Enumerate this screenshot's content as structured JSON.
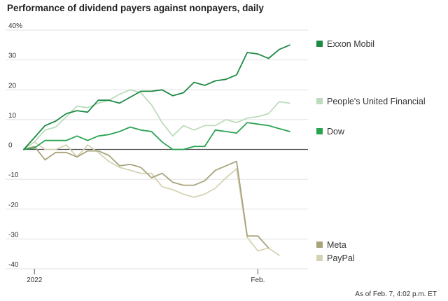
{
  "title": "Performance of dividend payers against nonpayers, daily",
  "footnote": "As of Feb. 7, 4:02 p.m. ET",
  "chart_data": {
    "type": "line",
    "y_unit_label": "%",
    "ylim": [
      -40,
      40
    ],
    "y_ticks": [
      40,
      30,
      20,
      10,
      0,
      -10,
      -20,
      -30,
      -40
    ],
    "x_tick_labels": [
      {
        "label": "2022",
        "index": 1
      },
      {
        "label": "Feb.",
        "index": 22
      }
    ],
    "grid": true,
    "legend_position": "right, at line ends",
    "series": [
      {
        "name": "Exxon Mobil",
        "color": "#1e8a45",
        "values": [
          0,
          4,
          8,
          9.5,
          12,
          13,
          12.5,
          16.5,
          16.5,
          15.5,
          17.5,
          19.5,
          19.5,
          20,
          18,
          19,
          22.5,
          21.5,
          23,
          23.5,
          25,
          32.5,
          32,
          30.5,
          33.5,
          35
        ]
      },
      {
        "name": "People's United Financial",
        "color": "#bcdcbc",
        "values": [
          0,
          2.5,
          6.5,
          7.5,
          11,
          14.5,
          14,
          15.5,
          16.5,
          18.5,
          20,
          19,
          15,
          9,
          4.5,
          8,
          6.5,
          8,
          8,
          10,
          9,
          10.5,
          11,
          12,
          16,
          15.5
        ]
      },
      {
        "name": "Dow",
        "color": "#2aa452",
        "values": [
          0,
          0.5,
          3,
          3,
          3,
          4.5,
          3,
          4.5,
          5,
          6,
          7.5,
          6.5,
          6,
          2.5,
          0,
          0,
          1,
          1,
          6.5,
          6,
          5.5,
          9,
          8.5,
          8,
          7,
          6
        ]
      },
      {
        "name": "Meta",
        "color": "#a9a37c",
        "values": [
          0,
          1,
          -3.5,
          -1,
          -1,
          -2.5,
          -0.5,
          -0.5,
          -2,
          -5.5,
          -5,
          -6,
          -9.5,
          -8,
          -11,
          -12,
          -12,
          -10.5,
          -7,
          -5.5,
          -4,
          -29,
          -29,
          -33
        ]
      },
      {
        "name": "PayPal",
        "color": "#d6d3b4",
        "values": [
          0,
          2.5,
          0,
          0,
          1.5,
          -2.5,
          1.5,
          -1,
          -4,
          -6,
          -7,
          -8,
          -8,
          -12.5,
          -13.5,
          -15,
          -16,
          -15,
          -13,
          -9.5,
          -6.5,
          -29.5,
          -34,
          -33,
          -35.5
        ]
      }
    ]
  }
}
